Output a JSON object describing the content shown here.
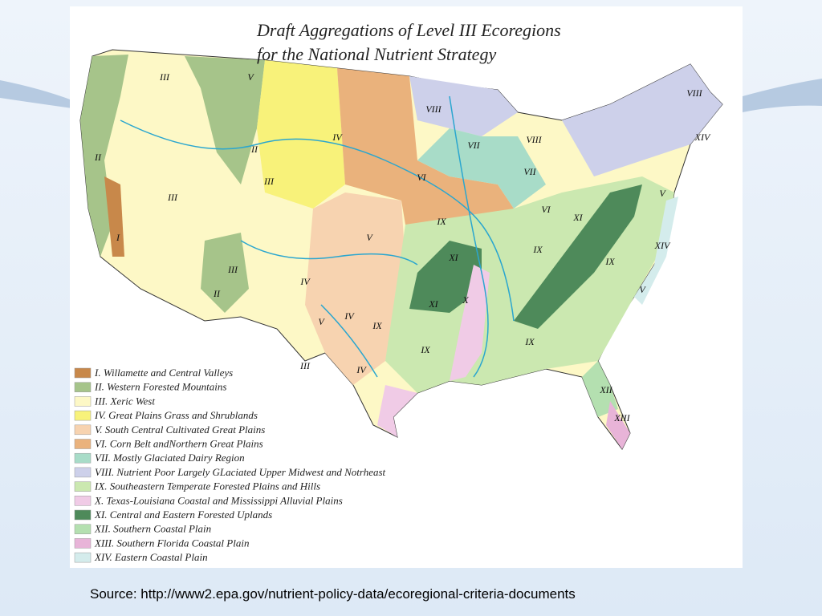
{
  "title": [
    "Draft Aggregations of Level III Ecoregions",
    "for the National Nutrient Strategy"
  ],
  "legend": [
    {
      "label": "I. Willamette and Central Valleys",
      "color": "#c8884a"
    },
    {
      "label": "II. Western Forested Mountains",
      "color": "#a6c48a"
    },
    {
      "label": "III.  Xeric West",
      "color": "#fdf8c6"
    },
    {
      "label": "IV. Great Plains Grass and Shrublands",
      "color": "#f8f27a"
    },
    {
      "label": "V. South Central Cultivated Great Plains",
      "color": "#f7d3b0"
    },
    {
      "label": "VI. Corn Belt andNorthern Great Plains",
      "color": "#eab27c"
    },
    {
      "label": "VII.  Mostly Glaciated Dairy Region",
      "color": "#a8dcc8"
    },
    {
      "label": "VIII.  Nutrient Poor Largely GLaciated Upper Midwest and Notrheast",
      "color": "#cdd0ea"
    },
    {
      "label": "IX.  Southeastern Temperate Forested Plains and Hills",
      "color": "#cbe8b0"
    },
    {
      "label": "X.  Texas-Louisiana Coastal and Mississippi Alluvial Plains",
      "color": "#f0cbe6"
    },
    {
      "label": "XI.  Central and Eastern Forested Uplands",
      "color": "#4e8a5a"
    },
    {
      "label": "XII.  Southern Coastal Plain",
      "color": "#b4e0b0"
    },
    {
      "label": "XIII.  Southern Florida Coastal Plain",
      "color": "#e8b4d8"
    },
    {
      "label": "XIV.  Eastern Coastal Plain",
      "color": "#d4ecec"
    }
  ],
  "map_labels": [
    "III",
    "V",
    "II",
    "III",
    "II",
    "III",
    "IV",
    "VIII",
    "VII",
    "VIII",
    "VIII",
    "VI",
    "VII",
    "VI",
    "IX",
    "XI",
    "V",
    "III",
    "IV",
    "II",
    "XIV",
    "XIV",
    "XI",
    "IX",
    "IX",
    "V",
    "V",
    "X",
    "XI",
    "IX",
    "IX",
    "IV",
    "V",
    "IX",
    "III",
    "IV",
    "XII",
    "XIII",
    "I"
  ],
  "source": "Source: http://www2.epa.gov/nutrient-policy-data/ecoregional-criteria-documents"
}
